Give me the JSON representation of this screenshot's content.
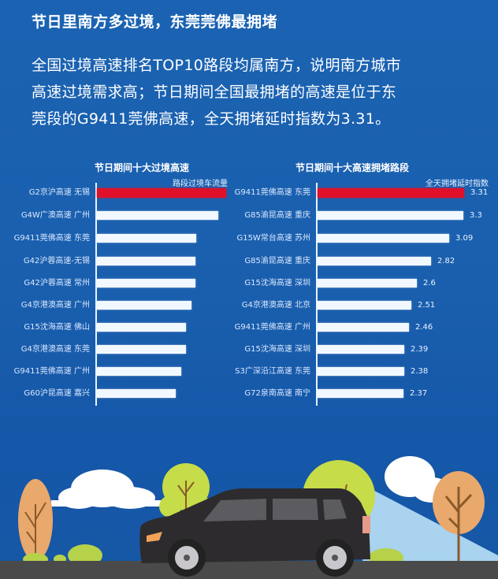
{
  "header": {
    "title": "节日里南方多过境，东莞莞佛最拥堵",
    "intro_lines": [
      "全国过境高速排名TOP10路段均属南方，说明南方城市",
      "高速过境需求高；节日期间全国最拥堵的高速是位于东",
      "莞段的G9411莞佛高速，全天拥堵延时指数为3.31。"
    ]
  },
  "colors": {
    "background": "#1a5fae",
    "highlight_bar": "#e0102a",
    "bar": "#f2f8ff",
    "text": "#ffffff"
  },
  "chart_data": [
    {
      "type": "bar",
      "orientation": "horizontal",
      "title": "节日期间十大过境高速",
      "xlabel": "路段过境车流量",
      "ylabel": "",
      "categories": [
        "G2京沪高速 无锡",
        "G4W广澳高速 广州",
        "G9411莞佛高速 东莞",
        "G42沪蓉高速-无锡",
        "G42沪蓉高速 常州",
        "G4京港澳高速 广州",
        "G15沈海高速 佛山",
        "G4京港澳高速 东莞",
        "G9411莞佛高速 广州",
        "G60沪昆高速 嘉兴"
      ],
      "values": [
        100,
        94,
        77,
        76,
        76,
        73,
        69,
        69,
        65,
        61
      ],
      "values_note": "relative bar length (% of max); no numeric labels shown",
      "highlight_index": 0,
      "grid": false,
      "legend": "none"
    },
    {
      "type": "bar",
      "orientation": "horizontal",
      "title": "节日期间十大高速拥堵路段",
      "xlabel": "全天拥堵延时指数",
      "ylabel": "",
      "categories": [
        "G9411莞佛高速 东莞",
        "G85渝昆高速 重庆",
        "G15W常台高速 苏州",
        "G85渝昆高速 重庆",
        "G15沈海高速 深圳",
        "G4京港澳高速 北京",
        "G9411莞佛高速 广州",
        "G15沈海高速 深圳",
        "S3广深沿江高速 东莞",
        "G72泉南高速 南宁"
      ],
      "values": [
        3.31,
        3.3,
        3.09,
        2.82,
        2.6,
        2.51,
        2.46,
        2.39,
        2.38,
        2.37
      ],
      "value_labels": [
        "3.31",
        "3.3",
        "3.09",
        "2.82",
        "2.6",
        "2.51",
        "2.46",
        "2.39",
        "2.38",
        "2.37"
      ],
      "highlight_index": 0,
      "grid": false,
      "legend": "none"
    }
  ]
}
